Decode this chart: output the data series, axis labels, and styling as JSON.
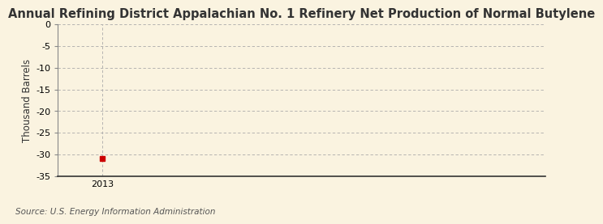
{
  "title": "Annual Refining District Appalachian No. 1 Refinery Net Production of Normal Butylene",
  "ylabel": "Thousand Barrels",
  "source_text": "Source: U.S. Energy Information Administration",
  "x_data": [
    2013
  ],
  "y_data": [
    -31
  ],
  "xlim": [
    2012.6,
    2017.0
  ],
  "ylim": [
    -35,
    0
  ],
  "yticks": [
    0,
    -5,
    -10,
    -15,
    -20,
    -25,
    -30,
    -35
  ],
  "xticks": [
    2013
  ],
  "background_color": "#faf3e0",
  "plot_bg_color": "#faf3e0",
  "grid_color": "#aaaaaa",
  "point_color": "#cc0000",
  "title_fontsize": 10.5,
  "ylabel_fontsize": 8.5,
  "source_fontsize": 7.5,
  "tick_fontsize": 8
}
